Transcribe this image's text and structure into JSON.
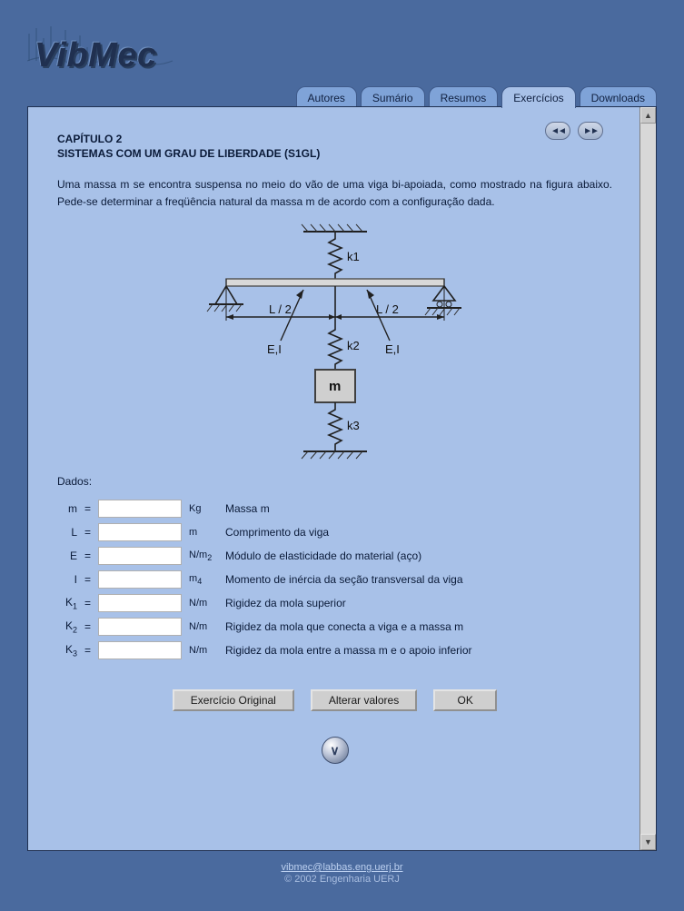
{
  "app": {
    "logo_text": "VibMec"
  },
  "tabs": {
    "items": [
      {
        "label": "Autores"
      },
      {
        "label": "Sumário"
      },
      {
        "label": "Resumos"
      },
      {
        "label": "Exercícios",
        "active": true
      },
      {
        "label": "Downloads"
      }
    ]
  },
  "page": {
    "chapter": "CAPÍTULO 2",
    "subtitle": "SISTEMAS COM UM GRAU DE LIBERDADE (S1GL)",
    "problem_text": "Uma massa m se encontra suspensa no meio do vão de uma viga bi-apoiada, como mostrado na figura abaixo. Pede-se determinar a freqüência natural da massa m de acordo com a configuração dada.",
    "section_label": "Dados:"
  },
  "diagram": {
    "k1": "k1",
    "k2": "k2",
    "k3": "k3",
    "mass": "m",
    "ei_left": "E,I",
    "ei_right": "E,I",
    "span_left": "L / 2",
    "span_right": "L / 2",
    "colors": {
      "beam_fill": "#d8d8d8",
      "beam_stroke": "#505050",
      "line": "#202020",
      "mass_fill": "#cfcfcf",
      "hatch": "#303030"
    }
  },
  "params": [
    {
      "sym": "m",
      "sub": "",
      "unit_html": "Kg",
      "desc": "Massa m"
    },
    {
      "sym": "L",
      "sub": "",
      "unit_html": "m",
      "desc": "Comprimento da viga"
    },
    {
      "sym": "E",
      "sub": "",
      "unit_html": "N/m<sub>2</sub>",
      "desc": "Módulo de elasticidade do material (aço)"
    },
    {
      "sym": "I",
      "sub": "",
      "unit_html": "m<sub>4</sub>",
      "desc": "Momento de inércia da seção transversal da viga"
    },
    {
      "sym": "K",
      "sub": "1",
      "unit_html": "N/m",
      "desc": "Rigidez da mola superior"
    },
    {
      "sym": "K",
      "sub": "2",
      "unit_html": "N/m",
      "desc": "Rigidez da mola que conecta a viga e a massa m"
    },
    {
      "sym": "K",
      "sub": "3",
      "unit_html": "N/m",
      "desc": "Rigidez da mola entre a massa m e o apoio inferior"
    }
  ],
  "buttons": {
    "original": "Exercício Original",
    "alterar": "Alterar valores",
    "ok": "OK"
  },
  "footer": {
    "email": "vibmec@labbas.eng.uerj.br",
    "copyright": "© 2002 Engenharia UERJ"
  },
  "nav": {
    "prev": "◄◄",
    "next": "►►"
  }
}
